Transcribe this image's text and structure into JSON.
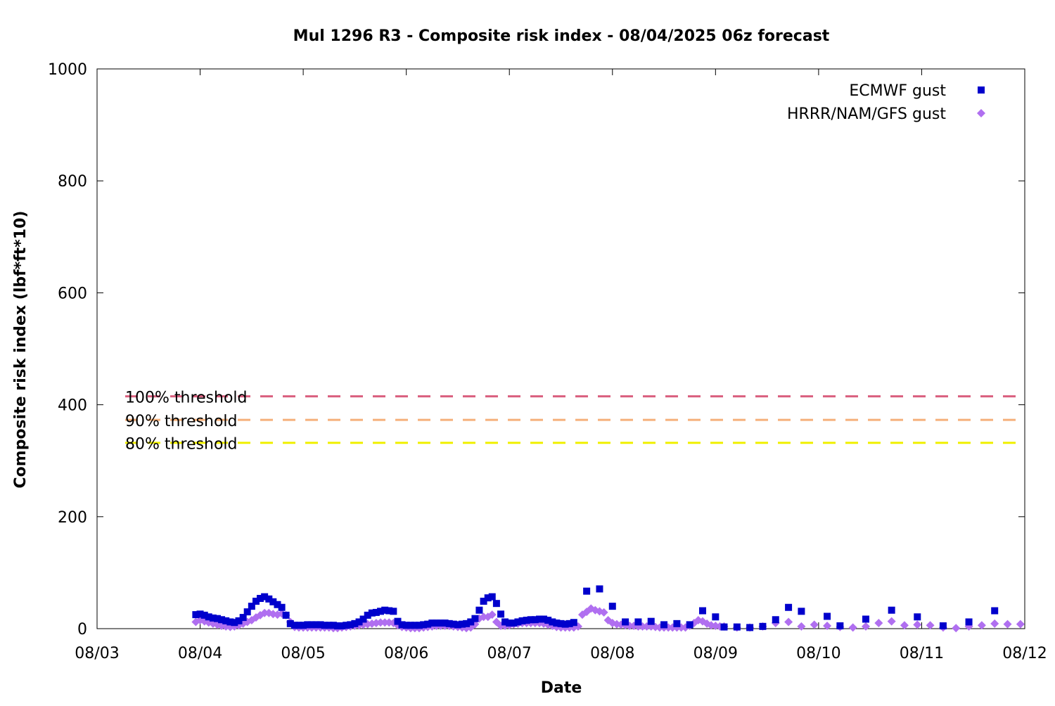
{
  "chart_data": {
    "type": "scatter",
    "title": "Mul 1296 R3 - Composite risk index - 08/04/2025 06z forecast",
    "xlabel": "Date",
    "ylabel": "Composite risk index (lbf*ft*10)",
    "x_unit": "days from 08/03",
    "xlim": [
      0,
      9
    ],
    "ylim": [
      0,
      1000
    ],
    "x_ticks": [
      {
        "x": 0,
        "label": "08/03"
      },
      {
        "x": 1,
        "label": "08/04"
      },
      {
        "x": 2,
        "label": "08/05"
      },
      {
        "x": 3,
        "label": "08/06"
      },
      {
        "x": 4,
        "label": "08/07"
      },
      {
        "x": 5,
        "label": "08/08"
      },
      {
        "x": 6,
        "label": "08/09"
      },
      {
        "x": 7,
        "label": "08/10"
      },
      {
        "x": 8,
        "label": "08/11"
      },
      {
        "x": 9,
        "label": "08/12"
      }
    ],
    "y_ticks": [
      {
        "y": 0,
        "label": "0"
      },
      {
        "y": 200,
        "label": "200"
      },
      {
        "y": 400,
        "label": "400"
      },
      {
        "y": 600,
        "label": "600"
      },
      {
        "y": 800,
        "label": "800"
      },
      {
        "y": 1000,
        "label": "1000"
      }
    ],
    "grid": false,
    "legend_position": "top-right",
    "thresholds": [
      {
        "name": "100% threshold",
        "value": 415,
        "color": "#d95f7e"
      },
      {
        "name": "90% threshold",
        "value": 373,
        "color": "#f5b07a"
      },
      {
        "name": "80% threshold",
        "value": 332,
        "color": "#f0f000"
      }
    ],
    "series": [
      {
        "name": "ECMWF gust",
        "marker": "square",
        "color": "#0000cc",
        "points": [
          [
            0.958,
            25
          ],
          [
            1.0,
            26
          ],
          [
            1.042,
            24
          ],
          [
            1.083,
            21
          ],
          [
            1.125,
            19
          ],
          [
            1.167,
            18
          ],
          [
            1.208,
            16
          ],
          [
            1.25,
            14
          ],
          [
            1.292,
            12
          ],
          [
            1.333,
            11
          ],
          [
            1.375,
            14
          ],
          [
            1.417,
            20
          ],
          [
            1.458,
            30
          ],
          [
            1.5,
            40
          ],
          [
            1.542,
            49
          ],
          [
            1.583,
            54
          ],
          [
            1.625,
            57
          ],
          [
            1.667,
            53
          ],
          [
            1.708,
            48
          ],
          [
            1.75,
            43
          ],
          [
            1.792,
            38
          ],
          [
            1.833,
            24
          ],
          [
            1.875,
            9
          ],
          [
            1.917,
            6
          ],
          [
            1.958,
            6
          ],
          [
            2.0,
            6
          ],
          [
            2.042,
            7
          ],
          [
            2.083,
            7
          ],
          [
            2.125,
            7
          ],
          [
            2.167,
            7
          ],
          [
            2.208,
            6
          ],
          [
            2.25,
            6
          ],
          [
            2.292,
            6
          ],
          [
            2.333,
            5
          ],
          [
            2.375,
            5
          ],
          [
            2.417,
            6
          ],
          [
            2.458,
            7
          ],
          [
            2.5,
            9
          ],
          [
            2.542,
            12
          ],
          [
            2.583,
            17
          ],
          [
            2.625,
            24
          ],
          [
            2.667,
            28
          ],
          [
            2.708,
            29
          ],
          [
            2.75,
            31
          ],
          [
            2.792,
            33
          ],
          [
            2.833,
            32
          ],
          [
            2.875,
            31
          ],
          [
            2.917,
            13
          ],
          [
            2.958,
            7
          ],
          [
            3.0,
            6
          ],
          [
            3.042,
            6
          ],
          [
            3.083,
            6
          ],
          [
            3.125,
            6
          ],
          [
            3.167,
            7
          ],
          [
            3.208,
            8
          ],
          [
            3.25,
            10
          ],
          [
            3.292,
            10
          ],
          [
            3.333,
            10
          ],
          [
            3.375,
            10
          ],
          [
            3.417,
            9
          ],
          [
            3.458,
            8
          ],
          [
            3.5,
            7
          ],
          [
            3.542,
            8
          ],
          [
            3.583,
            9
          ],
          [
            3.625,
            12
          ],
          [
            3.667,
            18
          ],
          [
            3.708,
            33
          ],
          [
            3.75,
            49
          ],
          [
            3.792,
            55
          ],
          [
            3.833,
            57
          ],
          [
            3.875,
            45
          ],
          [
            3.917,
            26
          ],
          [
            3.958,
            12
          ],
          [
            4.0,
            10
          ],
          [
            4.042,
            10
          ],
          [
            4.083,
            12
          ],
          [
            4.125,
            14
          ],
          [
            4.167,
            15
          ],
          [
            4.208,
            16
          ],
          [
            4.25,
            16
          ],
          [
            4.292,
            17
          ],
          [
            4.333,
            17
          ],
          [
            4.375,
            15
          ],
          [
            4.417,
            12
          ],
          [
            4.458,
            10
          ],
          [
            4.5,
            9
          ],
          [
            4.542,
            8
          ],
          [
            4.583,
            9
          ],
          [
            4.625,
            11
          ],
          [
            4.75,
            67
          ],
          [
            4.875,
            71
          ],
          [
            5.0,
            40
          ],
          [
            5.125,
            12
          ],
          [
            5.25,
            12
          ],
          [
            5.375,
            13
          ],
          [
            5.5,
            7
          ],
          [
            5.625,
            9
          ],
          [
            5.75,
            7
          ],
          [
            5.875,
            32
          ],
          [
            6.0,
            21
          ],
          [
            6.083,
            3
          ],
          [
            6.208,
            3
          ],
          [
            6.333,
            2
          ],
          [
            6.458,
            4
          ],
          [
            6.583,
            16
          ],
          [
            6.708,
            38
          ],
          [
            6.833,
            31
          ],
          [
            7.083,
            22
          ],
          [
            7.208,
            5
          ],
          [
            7.458,
            17
          ],
          [
            7.708,
            33
          ],
          [
            7.958,
            21
          ],
          [
            8.208,
            5
          ],
          [
            8.458,
            12
          ],
          [
            8.708,
            32
          ]
        ]
      },
      {
        "name": "HRRR/NAM/GFS gust",
        "marker": "diamond",
        "color": "#b06ff0",
        "points": [
          [
            0.958,
            12
          ],
          [
            1.0,
            15
          ],
          [
            1.042,
            13
          ],
          [
            1.083,
            11
          ],
          [
            1.125,
            9
          ],
          [
            1.167,
            7
          ],
          [
            1.208,
            5
          ],
          [
            1.25,
            4
          ],
          [
            1.292,
            3
          ],
          [
            1.333,
            4
          ],
          [
            1.375,
            6
          ],
          [
            1.417,
            9
          ],
          [
            1.458,
            12
          ],
          [
            1.5,
            15
          ],
          [
            1.542,
            20
          ],
          [
            1.583,
            24
          ],
          [
            1.625,
            28
          ],
          [
            1.667,
            28
          ],
          [
            1.708,
            26
          ],
          [
            1.75,
            25
          ],
          [
            1.792,
            27
          ],
          [
            1.833,
            24
          ],
          [
            1.875,
            12
          ],
          [
            1.917,
            3
          ],
          [
            1.958,
            2
          ],
          [
            2.0,
            2
          ],
          [
            2.042,
            2
          ],
          [
            2.083,
            2
          ],
          [
            2.125,
            2
          ],
          [
            2.167,
            2
          ],
          [
            2.208,
            2
          ],
          [
            2.25,
            2
          ],
          [
            2.292,
            1
          ],
          [
            2.333,
            1
          ],
          [
            2.375,
            2
          ],
          [
            2.417,
            3
          ],
          [
            2.458,
            4
          ],
          [
            2.5,
            5
          ],
          [
            2.542,
            6
          ],
          [
            2.583,
            7
          ],
          [
            2.625,
            8
          ],
          [
            2.667,
            9
          ],
          [
            2.708,
            10
          ],
          [
            2.75,
            11
          ],
          [
            2.792,
            11
          ],
          [
            2.833,
            11
          ],
          [
            2.875,
            10
          ],
          [
            2.917,
            6
          ],
          [
            2.958,
            3
          ],
          [
            3.0,
            2
          ],
          [
            3.042,
            1
          ],
          [
            3.083,
            1
          ],
          [
            3.125,
            1
          ],
          [
            3.167,
            2
          ],
          [
            3.208,
            3
          ],
          [
            3.25,
            4
          ],
          [
            3.292,
            5
          ],
          [
            3.333,
            5
          ],
          [
            3.375,
            5
          ],
          [
            3.417,
            5
          ],
          [
            3.458,
            4
          ],
          [
            3.5,
            3
          ],
          [
            3.542,
            2
          ],
          [
            3.583,
            1
          ],
          [
            3.625,
            2
          ],
          [
            3.667,
            8
          ],
          [
            3.708,
            18
          ],
          [
            3.75,
            21
          ],
          [
            3.792,
            21
          ],
          [
            3.833,
            25
          ],
          [
            3.875,
            12
          ],
          [
            3.917,
            5
          ],
          [
            3.958,
            5
          ],
          [
            4.0,
            6
          ],
          [
            4.042,
            8
          ],
          [
            4.083,
            9
          ],
          [
            4.125,
            10
          ],
          [
            4.167,
            10
          ],
          [
            4.208,
            10
          ],
          [
            4.25,
            10
          ],
          [
            4.292,
            10
          ],
          [
            4.333,
            9
          ],
          [
            4.375,
            7
          ],
          [
            4.417,
            5
          ],
          [
            4.458,
            3
          ],
          [
            4.5,
            2
          ],
          [
            4.542,
            2
          ],
          [
            4.583,
            2
          ],
          [
            4.625,
            2
          ],
          [
            4.667,
            4
          ],
          [
            4.708,
            25
          ],
          [
            4.75,
            30
          ],
          [
            4.792,
            36
          ],
          [
            4.833,
            33
          ],
          [
            4.875,
            31
          ],
          [
            4.917,
            29
          ],
          [
            4.958,
            15
          ],
          [
            5.0,
            10
          ],
          [
            5.042,
            8
          ],
          [
            5.083,
            7
          ],
          [
            5.125,
            6
          ],
          [
            5.167,
            5
          ],
          [
            5.208,
            5
          ],
          [
            5.25,
            4
          ],
          [
            5.292,
            4
          ],
          [
            5.333,
            4
          ],
          [
            5.375,
            4
          ],
          [
            5.417,
            3
          ],
          [
            5.458,
            2
          ],
          [
            5.5,
            2
          ],
          [
            5.542,
            2
          ],
          [
            5.583,
            2
          ],
          [
            5.625,
            2
          ],
          [
            5.667,
            2
          ],
          [
            5.708,
            2
          ],
          [
            5.75,
            5
          ],
          [
            5.792,
            10
          ],
          [
            5.833,
            15
          ],
          [
            5.875,
            13
          ],
          [
            5.917,
            9
          ],
          [
            5.958,
            6
          ],
          [
            6.0,
            5
          ],
          [
            6.042,
            4
          ],
          [
            6.083,
            4
          ],
          [
            6.208,
            2
          ],
          [
            6.333,
            2
          ],
          [
            6.458,
            4
          ],
          [
            6.583,
            10
          ],
          [
            6.708,
            12
          ],
          [
            6.833,
            4
          ],
          [
            6.958,
            7
          ],
          [
            7.083,
            5
          ],
          [
            7.208,
            3
          ],
          [
            7.333,
            2
          ],
          [
            7.458,
            4
          ],
          [
            7.583,
            10
          ],
          [
            7.708,
            13
          ],
          [
            7.833,
            6
          ],
          [
            7.958,
            7
          ],
          [
            8.083,
            6
          ],
          [
            8.208,
            2
          ],
          [
            8.333,
            1
          ],
          [
            8.458,
            4
          ],
          [
            8.583,
            6
          ],
          [
            8.708,
            9
          ],
          [
            8.833,
            8
          ],
          [
            8.958,
            8
          ]
        ]
      }
    ]
  }
}
